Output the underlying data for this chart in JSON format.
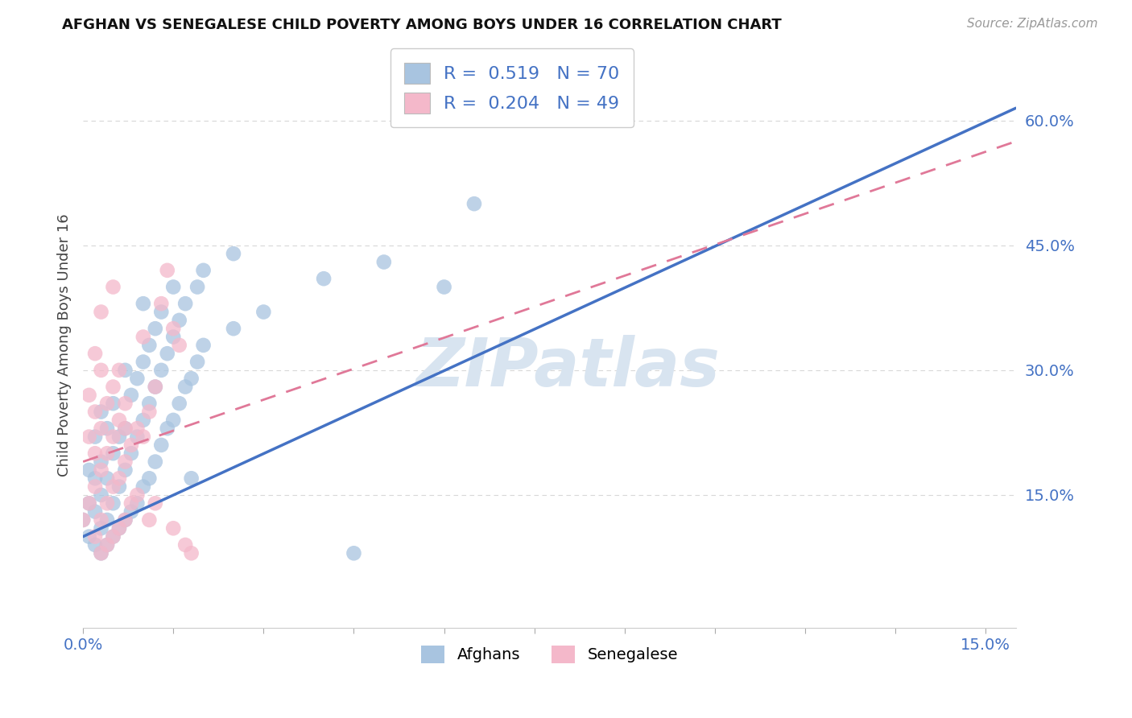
{
  "title": "AFGHAN VS SENEGALESE CHILD POVERTY AMONG BOYS UNDER 16 CORRELATION CHART",
  "source": "Source: ZipAtlas.com",
  "ylabel": "Child Poverty Among Boys Under 16",
  "xlim": [
    0.0,
    0.155
  ],
  "ylim": [
    -0.01,
    0.67
  ],
  "xtick_vals": [
    0.0,
    0.015,
    0.03,
    0.045,
    0.06,
    0.075,
    0.09,
    0.105,
    0.12,
    0.135,
    0.15
  ],
  "ytick_vals": [
    0.15,
    0.3,
    0.45,
    0.6
  ],
  "xtick_labels_show": {
    "0.0": "0.0%",
    "0.15": "15.0%"
  },
  "ytick_labels": [
    "15.0%",
    "30.0%",
    "45.0%",
    "60.0%"
  ],
  "afghan_color": "#a8c4e0",
  "senegalese_color": "#f4b8ca",
  "afghan_line_color": "#4472c4",
  "senegalese_line_color": "#e07898",
  "watermark_color": "#d8e4f0",
  "legend_r_afghan": "0.519",
  "legend_n_afghan": "70",
  "legend_r_senegalese": "0.204",
  "legend_n_senegalese": "49",
  "legend_label_afghans": "Afghans",
  "legend_label_senegalese": "Senegalese",
  "background_color": "#ffffff",
  "grid_color": "#d8d8d8",
  "title_color": "#111111",
  "tick_color": "#4472c4",
  "blue_text_color": "#4472c4",
  "afghan_line_x": [
    0.0,
    0.155
  ],
  "afghan_line_y": [
    0.1,
    0.615
  ],
  "senegalese_line_x": [
    0.0,
    0.155
  ],
  "senegalese_line_y": [
    0.19,
    0.575
  ],
  "afghan_points_x": [
    0.0,
    0.001,
    0.001,
    0.001,
    0.002,
    0.002,
    0.002,
    0.002,
    0.003,
    0.003,
    0.003,
    0.003,
    0.003,
    0.004,
    0.004,
    0.004,
    0.004,
    0.005,
    0.005,
    0.005,
    0.005,
    0.006,
    0.006,
    0.006,
    0.007,
    0.007,
    0.007,
    0.007,
    0.008,
    0.008,
    0.008,
    0.009,
    0.009,
    0.009,
    0.01,
    0.01,
    0.01,
    0.01,
    0.011,
    0.011,
    0.011,
    0.012,
    0.012,
    0.012,
    0.013,
    0.013,
    0.013,
    0.014,
    0.014,
    0.015,
    0.015,
    0.015,
    0.016,
    0.016,
    0.017,
    0.017,
    0.018,
    0.018,
    0.019,
    0.019,
    0.02,
    0.02,
    0.025,
    0.025,
    0.03,
    0.04,
    0.045,
    0.05,
    0.06,
    0.065
  ],
  "afghan_points_y": [
    0.12,
    0.1,
    0.14,
    0.18,
    0.09,
    0.13,
    0.17,
    0.22,
    0.08,
    0.11,
    0.15,
    0.19,
    0.25,
    0.09,
    0.12,
    0.17,
    0.23,
    0.1,
    0.14,
    0.2,
    0.26,
    0.11,
    0.16,
    0.22,
    0.12,
    0.18,
    0.23,
    0.3,
    0.13,
    0.2,
    0.27,
    0.14,
    0.22,
    0.29,
    0.16,
    0.24,
    0.31,
    0.38,
    0.17,
    0.26,
    0.33,
    0.19,
    0.28,
    0.35,
    0.21,
    0.3,
    0.37,
    0.23,
    0.32,
    0.24,
    0.34,
    0.4,
    0.26,
    0.36,
    0.28,
    0.38,
    0.29,
    0.17,
    0.31,
    0.4,
    0.33,
    0.42,
    0.35,
    0.44,
    0.37,
    0.41,
    0.08,
    0.43,
    0.4,
    0.5
  ],
  "senegalese_points_x": [
    0.0,
    0.001,
    0.001,
    0.001,
    0.002,
    0.002,
    0.002,
    0.002,
    0.002,
    0.003,
    0.003,
    0.003,
    0.003,
    0.003,
    0.004,
    0.004,
    0.004,
    0.005,
    0.005,
    0.005,
    0.005,
    0.006,
    0.006,
    0.006,
    0.007,
    0.007,
    0.007,
    0.008,
    0.008,
    0.009,
    0.009,
    0.01,
    0.01,
    0.011,
    0.011,
    0.012,
    0.012,
    0.013,
    0.014,
    0.015,
    0.015,
    0.016,
    0.017,
    0.018,
    0.003,
    0.004,
    0.005,
    0.006,
    0.007
  ],
  "senegalese_points_y": [
    0.12,
    0.14,
    0.22,
    0.27,
    0.1,
    0.16,
    0.2,
    0.25,
    0.32,
    0.08,
    0.12,
    0.18,
    0.3,
    0.37,
    0.09,
    0.14,
    0.26,
    0.1,
    0.22,
    0.28,
    0.4,
    0.11,
    0.17,
    0.3,
    0.12,
    0.19,
    0.26,
    0.14,
    0.21,
    0.15,
    0.23,
    0.22,
    0.34,
    0.12,
    0.25,
    0.14,
    0.28,
    0.38,
    0.42,
    0.35,
    0.11,
    0.33,
    0.09,
    0.08,
    0.23,
    0.2,
    0.16,
    0.24,
    0.23
  ]
}
